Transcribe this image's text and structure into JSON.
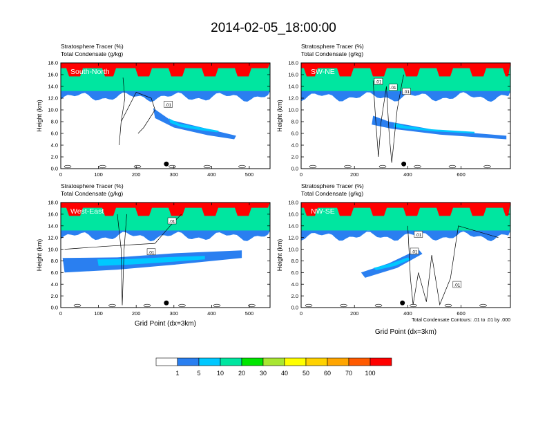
{
  "title": "2014-02-05_18:00:00",
  "chart_data": [
    {
      "type": "heatmap",
      "label": "South-North",
      "header_lines": [
        "Stratosphere Tracer   (%)",
        "Total Condensate   (g/kg)"
      ],
      "ylabel": "Height (km)",
      "xlabel": "",
      "xlim": [
        0,
        555
      ],
      "xticks": [
        0,
        100,
        200,
        300,
        400,
        500
      ],
      "ylim": [
        0,
        18
      ],
      "yticks": [
        "0.0",
        "2.0",
        "4.0",
        "6.0",
        "8.0",
        "10.0",
        "12.0",
        "14.0",
        "16.0",
        "18.0"
      ],
      "contour_labels": [
        {
          "text": ".01",
          "x": 285,
          "y": 10.9
        }
      ],
      "marker_x": 280
    },
    {
      "type": "heatmap",
      "label": "SW-NE",
      "header_lines": [
        "Stratosphere Tracer   (%)",
        "Total Condensate   (g/kg)"
      ],
      "ylabel": "Height (km)",
      "xlabel": "",
      "xlim": [
        0,
        785
      ],
      "xticks": [
        0,
        200,
        400,
        600
      ],
      "ylim": [
        0,
        18
      ],
      "yticks": [
        "0.0",
        "2.0",
        "4.0",
        "6.0",
        "8.0",
        "10.0",
        "12.0",
        "14.0",
        "16.0",
        "18.0"
      ],
      "contour_labels": [
        {
          "text": ".01",
          "x": 290,
          "y": 14.8
        },
        {
          "text": ".01",
          "x": 345,
          "y": 13.8
        },
        {
          "text": ".01",
          "x": 395,
          "y": 13.1
        }
      ],
      "marker_x": 385
    },
    {
      "type": "heatmap",
      "label": "West-East",
      "header_lines": [
        "Stratosphere Tracer   (%)",
        "Total Condensate   (g/kg)"
      ],
      "ylabel": "Height (km)",
      "xlabel": "Grid Point (dx=3km)",
      "xlim": [
        0,
        555
      ],
      "xticks": [
        0,
        100,
        200,
        300,
        400,
        500
      ],
      "ylim": [
        0,
        18
      ],
      "yticks": [
        "0.0",
        "2.0",
        "4.0",
        "6.0",
        "8.0",
        "10.0",
        "12.0",
        "14.0",
        "16.0",
        "18.0"
      ],
      "contour_labels": [
        {
          "text": ".01",
          "x": 295,
          "y": 14.8
        },
        {
          "text": ".01",
          "x": 240,
          "y": 9.5
        }
      ],
      "marker_x": 280
    },
    {
      "type": "heatmap",
      "label": "NW-SE",
      "header_lines": [
        "Stratosphere Tracer   (%)",
        "Total Condensate   (g/kg)"
      ],
      "ylabel": "Height (km)",
      "xlabel": "Grid Point (dx=3km)",
      "xlim": [
        0,
        785
      ],
      "xticks": [
        0,
        200,
        400,
        600
      ],
      "ylim": [
        0,
        18
      ],
      "yticks": [
        "0.0",
        "2.0",
        "4.0",
        "6.0",
        "8.0",
        "10.0",
        "12.0",
        "14.0",
        "16.0",
        "18.0"
      ],
      "contour_labels": [
        {
          "text": ".01",
          "x": 440,
          "y": 12.5
        },
        {
          "text": ".01",
          "x": 425,
          "y": 9.6
        },
        {
          "text": ".01",
          "x": 585,
          "y": 3.9
        }
      ],
      "marker_x": 380,
      "footnote": "Total Condensate Contours: .01 to .01 by .000"
    }
  ],
  "colorbar": {
    "levels": [
      "1",
      "5",
      "10",
      "20",
      "30",
      "40",
      "50",
      "60",
      "70",
      "100"
    ],
    "colors": [
      "#ffffff",
      "#2a7ff0",
      "#00c8ff",
      "#00e6a0",
      "#00e600",
      "#a8e632",
      "#ffff00",
      "#ffd200",
      "#ffa500",
      "#ff5a00",
      "#ff0000"
    ]
  }
}
